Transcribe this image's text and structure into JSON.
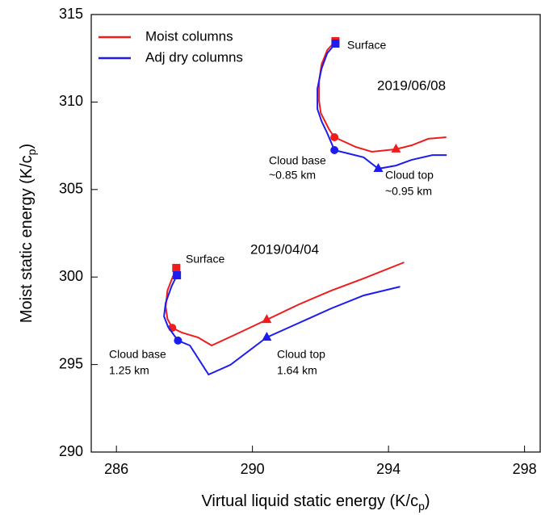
{
  "chart_data": {
    "type": "line",
    "x_label": {
      "text": "Virtual liquid static energy (K/c",
      "sub": "p",
      "tail": ")"
    },
    "y_label": {
      "text": "Moist static energy (K/c",
      "sub": "p",
      "tail": ")"
    },
    "xlim": [
      285.26,
      298.46
    ],
    "ylim": [
      290,
      315
    ],
    "xticks": [
      286,
      290,
      294,
      298
    ],
    "yticks": [
      290,
      295,
      300,
      305,
      310,
      315
    ],
    "legend": "upper left",
    "series": [
      {
        "name": "Moist columns",
        "color": "#ee1c1c",
        "x": [
          292.44,
          292.2,
          292.03,
          291.96,
          291.96,
          292.01,
          292.13,
          292.25,
          292.41,
          292.67,
          293.03,
          293.51,
          294.22,
          294.69,
          295.17,
          295.7,
          null,
          287.76,
          287.64,
          287.5,
          287.45,
          287.5,
          287.64,
          287.92,
          288.4,
          288.8,
          289.47,
          290.42,
          291.37,
          292.32,
          293.27,
          294.46
        ],
        "values": [
          313.48,
          312.97,
          312.14,
          311.22,
          310.06,
          309.37,
          308.91,
          308.45,
          307.99,
          307.76,
          307.44,
          307.16,
          307.3,
          307.53,
          307.9,
          307.99,
          null,
          300.52,
          299.92,
          299.23,
          298.3,
          297.61,
          297.1,
          296.83,
          296.55,
          296.09,
          296.69,
          297.56,
          298.44,
          299.23,
          299.92,
          300.84
        ],
        "markers": [
          {
            "shape": "square",
            "x": 292.44,
            "y": 313.48
          },
          {
            "shape": "circle",
            "x": 292.41,
            "y": 307.99
          },
          {
            "shape": "triangle",
            "x": 294.22,
            "y": 307.3
          },
          {
            "shape": "square",
            "x": 287.76,
            "y": 300.52
          },
          {
            "shape": "circle",
            "x": 287.64,
            "y": 297.1
          },
          {
            "shape": "triangle",
            "x": 290.42,
            "y": 297.56
          }
        ]
      },
      {
        "name": "Adj dry columns",
        "color": "#1c1cee",
        "x": [
          292.44,
          292.2,
          292.03,
          291.91,
          291.91,
          292.03,
          292.2,
          292.41,
          292.79,
          293.27,
          293.7,
          294.22,
          294.69,
          295.29,
          295.71,
          null,
          287.78,
          287.62,
          287.45,
          287.4,
          287.52,
          287.81,
          288.16,
          288.71,
          289.35,
          290.42,
          291.37,
          292.32,
          293.27,
          294.34
        ],
        "values": [
          313.34,
          312.79,
          311.91,
          310.76,
          309.6,
          308.91,
          308.22,
          307.25,
          307.07,
          306.84,
          306.19,
          306.37,
          306.7,
          306.97,
          306.97,
          null,
          300.1,
          299.46,
          298.53,
          297.75,
          297.15,
          296.37,
          296.09,
          294.43,
          294.98,
          296.55,
          297.38,
          298.21,
          298.95,
          299.45
        ],
        "markers": [
          {
            "shape": "square",
            "x": 292.44,
            "y": 313.34
          },
          {
            "shape": "circle",
            "x": 292.41,
            "y": 307.25
          },
          {
            "shape": "triangle",
            "x": 293.7,
            "y": 306.19
          },
          {
            "shape": "square",
            "x": 287.78,
            "y": 300.1
          },
          {
            "shape": "circle",
            "x": 287.81,
            "y": 296.37
          },
          {
            "shape": "triangle",
            "x": 290.42,
            "y": 296.55
          }
        ]
      }
    ],
    "annotations": [
      "Surface",
      "2019/06/08",
      "Cloud base",
      "~0.85 km",
      "Cloud top",
      "~0.95 km",
      "Surface",
      "2019/04/04",
      "Cloud base",
      "1.25 km",
      "Cloud top",
      "1.64 km"
    ]
  }
}
